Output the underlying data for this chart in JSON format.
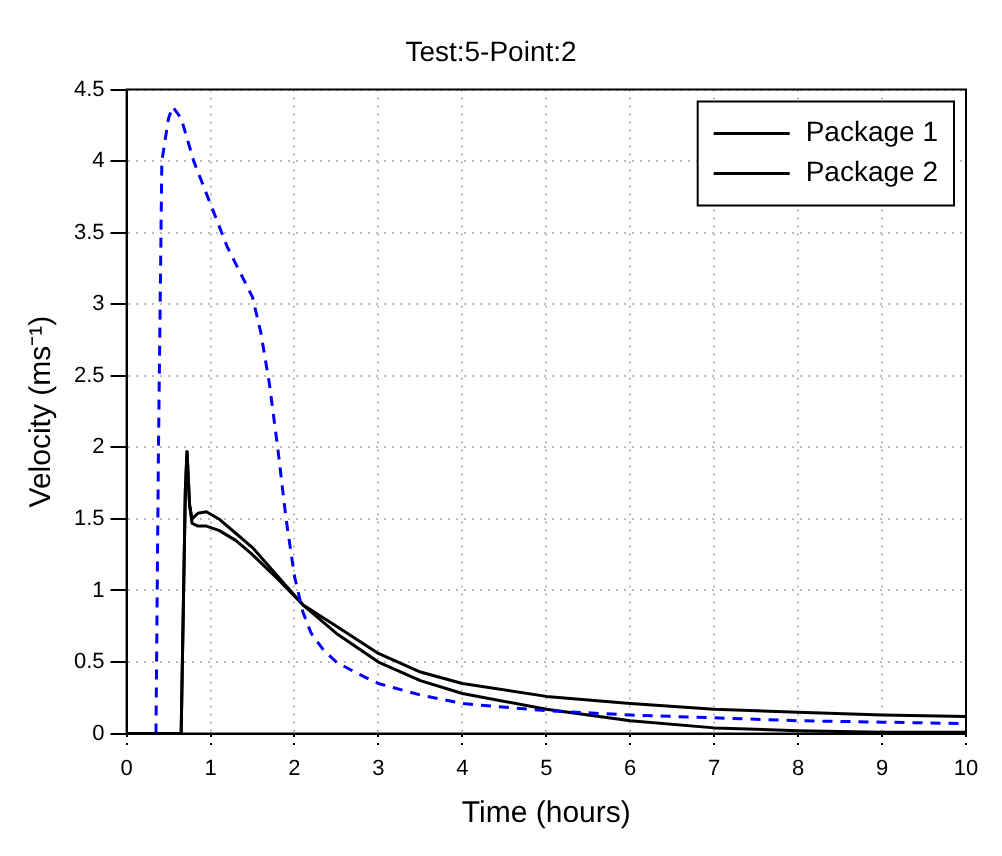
{
  "chart_data": {
    "type": "line",
    "title": "Test:5-Point:2",
    "xlabel": "Time (hours)",
    "ylabel": "Velocity (ms⁻¹)",
    "xlim": [
      0,
      10
    ],
    "xticks": [
      0,
      1,
      2,
      3,
      4,
      5,
      6,
      7,
      8,
      9,
      10
    ],
    "ylim": [
      0,
      4.5
    ],
    "yticks": [
      0,
      0.5,
      1,
      1.5,
      2,
      2.5,
      3,
      3.5,
      4,
      4.5
    ],
    "grid": true,
    "legend": "top right",
    "marker": "none",
    "series": [
      {
        "color": "#0000ff",
        "line_style": "dashed",
        "x": [
          0.35,
          0.38,
          0.42,
          0.5,
          0.55,
          0.65,
          0.8,
          1.0,
          1.2,
          1.5,
          1.6,
          1.7,
          1.8,
          1.9,
          2.0,
          2.1,
          2.2,
          2.35,
          2.5,
          2.75,
          3.0,
          3.5,
          4.0,
          5.0,
          6.0,
          7.0,
          8.0,
          9.0,
          10.0
        ],
        "values": [
          0,
          2.0,
          4.0,
          4.3,
          4.38,
          4.3,
          4.0,
          3.7,
          3.4,
          3.05,
          2.8,
          2.45,
          2.0,
          1.5,
          1.1,
          0.85,
          0.7,
          0.58,
          0.5,
          0.42,
          0.35,
          0.27,
          0.21,
          0.16,
          0.13,
          0.11,
          0.09,
          0.08,
          0.07
        ]
      },
      {
        "name": "Package 1",
        "color": "#000000",
        "line_style": "solid",
        "x": [
          0,
          0.65,
          0.7,
          0.72,
          0.75,
          0.78,
          0.85,
          0.95,
          1.1,
          1.3,
          1.5,
          1.8,
          2.1,
          2.5,
          3.0,
          3.5,
          4.0,
          5.0,
          6.0,
          7.0,
          8.0,
          9.0,
          10.0
        ],
        "values": [
          0,
          0,
          1.7,
          1.97,
          1.6,
          1.5,
          1.54,
          1.55,
          1.5,
          1.4,
          1.3,
          1.1,
          0.9,
          0.75,
          0.56,
          0.43,
          0.35,
          0.26,
          0.21,
          0.17,
          0.15,
          0.13,
          0.12
        ]
      },
      {
        "name": "Package 2",
        "color": "#000000",
        "line_style": "solid",
        "x": [
          0,
          0.65,
          0.7,
          0.72,
          0.75,
          0.78,
          0.85,
          0.95,
          1.1,
          1.3,
          1.5,
          1.8,
          2.1,
          2.5,
          3.0,
          3.5,
          4.0,
          5.0,
          6.0,
          7.0,
          8.0,
          9.0,
          10.0
        ],
        "values": [
          0,
          0,
          1.7,
          1.97,
          1.6,
          1.47,
          1.45,
          1.45,
          1.42,
          1.35,
          1.25,
          1.08,
          0.9,
          0.7,
          0.5,
          0.37,
          0.28,
          0.17,
          0.09,
          0.04,
          0.02,
          0.01,
          0.01
        ]
      }
    ]
  }
}
